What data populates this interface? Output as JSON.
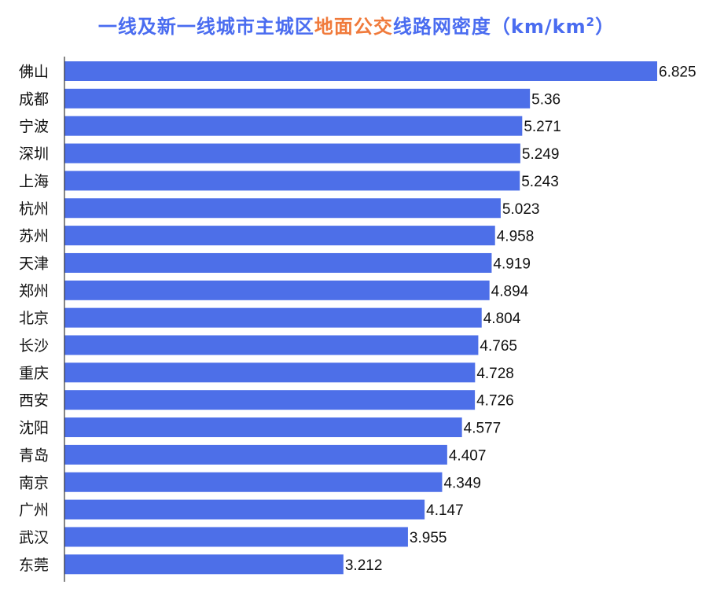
{
  "title": {
    "part1": "一线及新一线城市主城区",
    "highlight": "地面公交",
    "part2": "线路网密度（km/km",
    "sup": "2",
    "part3": "）"
  },
  "colors": {
    "bar": "#4d6fe8",
    "title": "#4a6cf0",
    "highlight": "#f07a3b",
    "axis": "#333333"
  },
  "chart_data": {
    "type": "bar",
    "orientation": "horizontal",
    "title": "一线及新一线城市主城区地面公交线路网密度（km/km2）",
    "categories": [
      "佛山",
      "成都",
      "宁波",
      "深圳",
      "上海",
      "杭州",
      "苏州",
      "天津",
      "郑州",
      "北京",
      "长沙",
      "重庆",
      "西安",
      "沈阳",
      "青岛",
      "南京",
      "广州",
      "武汉",
      "东莞"
    ],
    "values": [
      6.825,
      5.36,
      5.271,
      5.249,
      5.243,
      5.023,
      4.958,
      4.919,
      4.894,
      4.804,
      4.765,
      4.728,
      4.726,
      4.577,
      4.407,
      4.349,
      4.147,
      3.955,
      3.212
    ],
    "value_labels": [
      "6.825",
      "5.36",
      "5.271",
      "5.249",
      "5.243",
      "5.023",
      "4.958",
      "4.919",
      "4.894",
      "4.804",
      "4.765",
      "4.728",
      "4.726",
      "4.577",
      "4.407",
      "4.349",
      "4.147",
      "3.955",
      "3.212"
    ],
    "xlim": [
      0,
      6.825
    ],
    "grid": false,
    "legend": "none"
  }
}
